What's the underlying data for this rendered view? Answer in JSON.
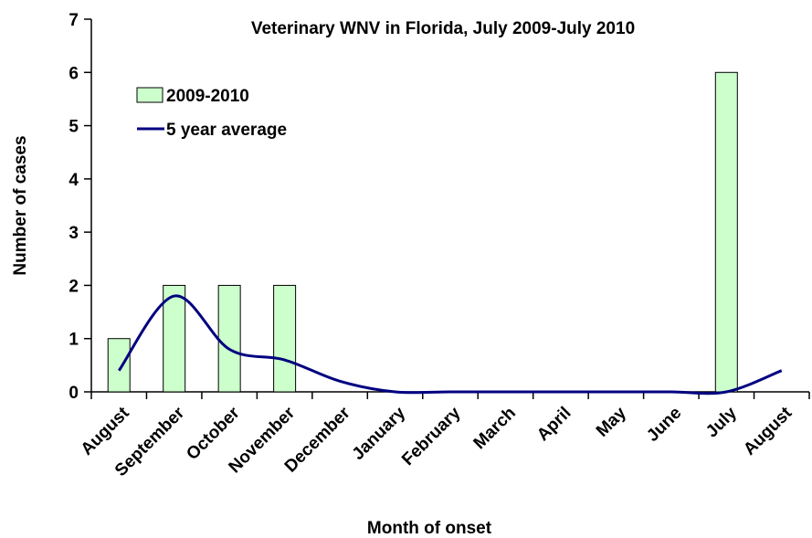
{
  "chart_data": {
    "type": "bar",
    "title": "Veterinary WNV in Florida, July 2009-July 2010",
    "x_label": "Month of onset",
    "y_label": "Number of cases",
    "categories": [
      "August",
      "September",
      "October",
      "November",
      "December",
      "January",
      "February",
      "March",
      "April",
      "May",
      "June",
      "July",
      "August"
    ],
    "series": [
      {
        "name": "2009-2010",
        "type": "bar",
        "color": "#ccffcc",
        "values": [
          1,
          2,
          2,
          2,
          0,
          0,
          0,
          0,
          0,
          0,
          0,
          6,
          0
        ]
      },
      {
        "name": "5 year average",
        "type": "line",
        "color": "#000080",
        "values": [
          0.4,
          1.8,
          0.8,
          0.6,
          0.2,
          0,
          0,
          0,
          0,
          0,
          0,
          0,
          0.4
        ]
      }
    ],
    "ylim": [
      0,
      7
    ],
    "yticks": [
      0,
      1,
      2,
      3,
      4,
      5,
      6,
      7
    ],
    "grid": false
  }
}
